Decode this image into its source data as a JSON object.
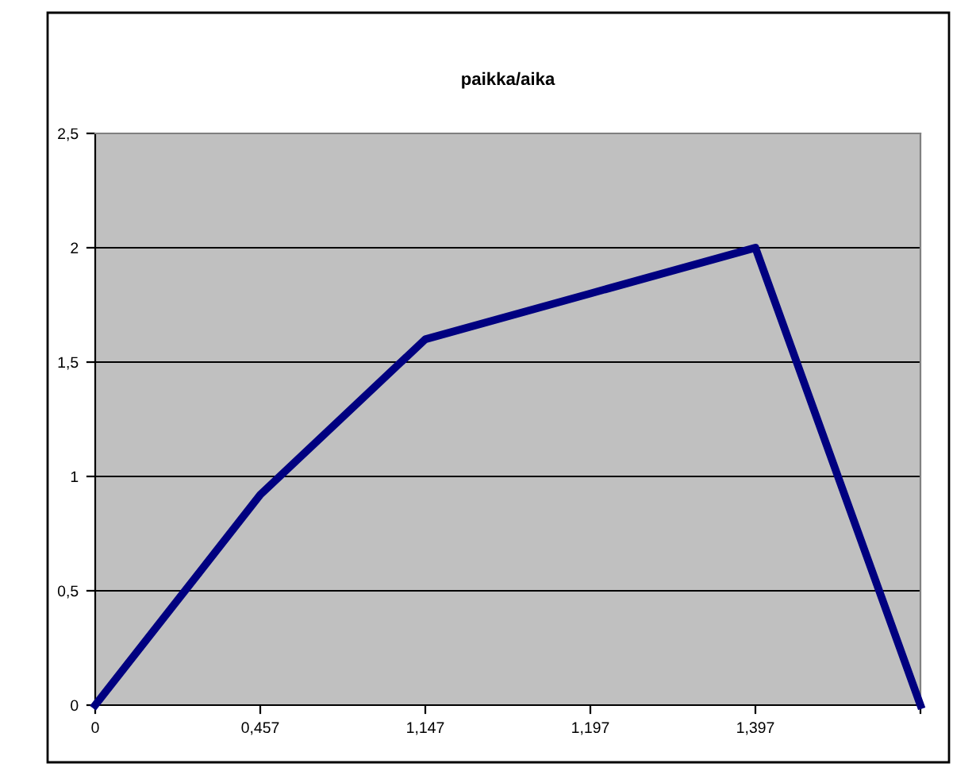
{
  "chart_data": {
    "type": "line",
    "title": "paikka/aika",
    "categories": [
      "0",
      "0,457",
      "1,147",
      "1,197",
      "1,397",
      null
    ],
    "series": [
      {
        "color": "#000080",
        "values": [
          0,
          0.92,
          1.6,
          1.8,
          2.0,
          0
        ]
      }
    ],
    "ylim": [
      0,
      2.5
    ],
    "yticks": [
      {
        "value": 0,
        "label": "0"
      },
      {
        "value": 0.5,
        "label": "0,5"
      },
      {
        "value": 1,
        "label": "1"
      },
      {
        "value": 1.5,
        "label": "1,5"
      },
      {
        "value": 2,
        "label": "2"
      },
      {
        "value": 2.5,
        "label": "2,5"
      }
    ],
    "grid": "y",
    "legend": false,
    "marker": "none",
    "line_style": "solid"
  }
}
